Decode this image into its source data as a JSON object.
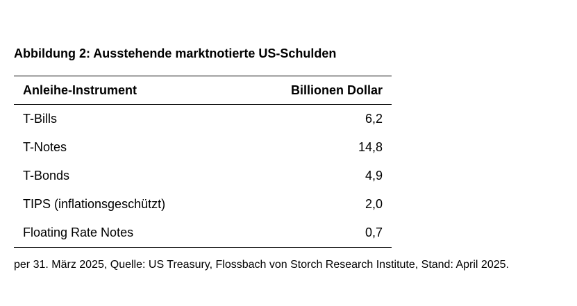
{
  "title": "Abbildung 2: Ausstehende marktnotierte US-Schulden",
  "table": {
    "headers": {
      "instrument": "Anleihe-Instrument",
      "value": "Billionen Dollar"
    },
    "rows": [
      {
        "instrument": "T-Bills",
        "value": "6,2"
      },
      {
        "instrument": "T-Notes",
        "value": "14,8"
      },
      {
        "instrument": "T-Bonds",
        "value": "4,9"
      },
      {
        "instrument": "TIPS (inflationsgeschützt)",
        "value": "2,0"
      },
      {
        "instrument": "Floating Rate Notes",
        "value": "0,7"
      }
    ]
  },
  "footnote": "per 31. März 2025, Quelle: US Treasury, Flossbach von Storch Research Institute, Stand: April 2025."
}
